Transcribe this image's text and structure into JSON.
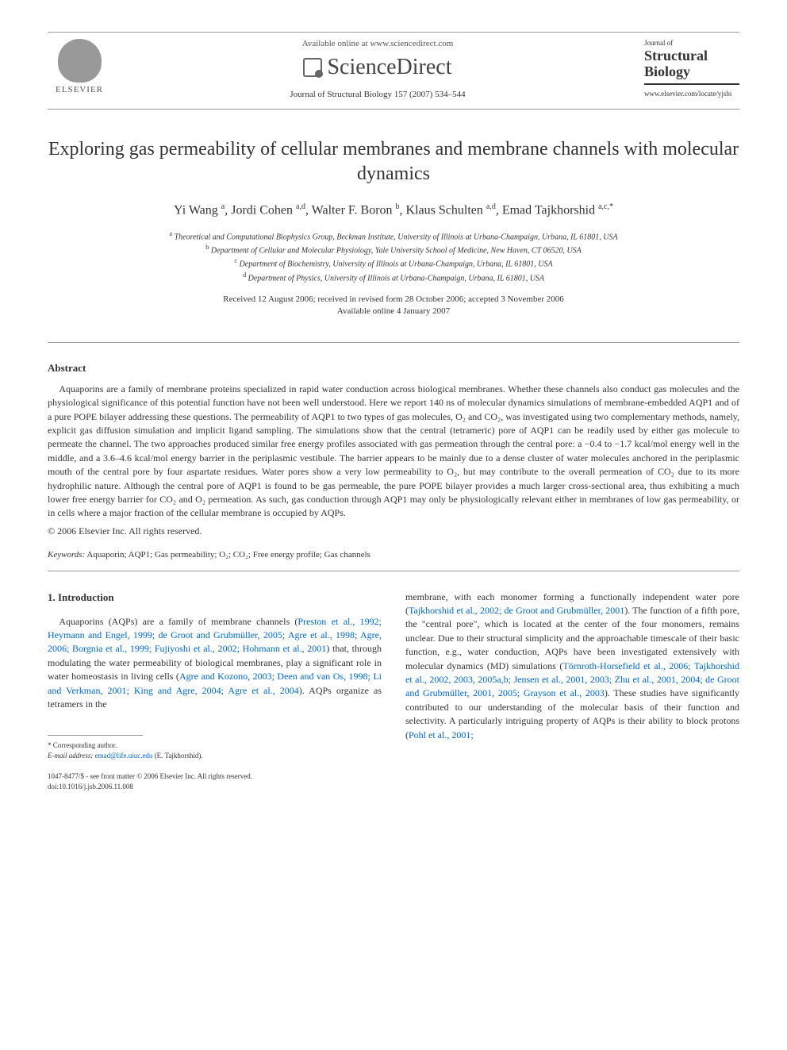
{
  "header": {
    "publisher_name": "ELSEVIER",
    "available_text": "Available online at www.sciencedirect.com",
    "platform_name": "ScienceDirect",
    "journal_ref": "Journal of Structural Biology 157 (2007) 534–544",
    "journal_small": "Journal of",
    "journal_large": "Structural Biology",
    "journal_url": "www.elsevier.com/locate/yjsbi"
  },
  "article": {
    "title": "Exploring gas permeability of cellular membranes and membrane channels with molecular dynamics",
    "authors_html": "Yi Wang <sup>a</sup>, Jordi Cohen <sup>a,d</sup>, Walter F. Boron <sup>b</sup>, Klaus Schulten <sup>a,d</sup>, Emad Tajkhorshid <sup>a,c,*</sup>",
    "affiliations": [
      {
        "sup": "a",
        "text": "Theoretical and Computational Biophysics Group, Beckman Institute, University of Illinois at Urbana-Champaign, Urbana, IL 61801, USA"
      },
      {
        "sup": "b",
        "text": "Department of Cellular and Molecular Physiology, Yale University School of Medicine, New Haven, CT 06520, USA"
      },
      {
        "sup": "c",
        "text": "Department of Biochemistry, University of Illinois at Urbana-Champaign, Urbana, IL 61801, USA"
      },
      {
        "sup": "d",
        "text": "Department of Physics, University of Illinois at Urbana-Champaign, Urbana, IL 61801, USA"
      }
    ],
    "dates_line1": "Received 12 August 2006; received in revised form 28 October 2006; accepted 3 November 2006",
    "dates_line2": "Available online 4 January 2007"
  },
  "abstract": {
    "heading": "Abstract",
    "body": "Aquaporins are a family of membrane proteins specialized in rapid water conduction across biological membranes. Whether these channels also conduct gas molecules and the physiological significance of this potential function have not been well understood. Here we report 140 ns of molecular dynamics simulations of membrane-embedded AQP1 and of a pure POPE bilayer addressing these questions. The permeability of AQP1 to two types of gas molecules, O₂ and CO₂, was investigated using two complementary methods, namely, explicit gas diffusion simulation and implicit ligand sampling. The simulations show that the central (tetrameric) pore of AQP1 can be readily used by either gas molecule to permeate the channel. The two approaches produced similar free energy profiles associated with gas permeation through the central pore: a −0.4 to −1.7 kcal/mol energy well in the middle, and a 3.6–4.6 kcal/mol energy barrier in the periplasmic vestibule. The barrier appears to be mainly due to a dense cluster of water molecules anchored in the periplasmic mouth of the central pore by four aspartate residues. Water pores show a very low permeability to O₂, but may contribute to the overall permeation of CO₂ due to its more hydrophilic nature. Although the central pore of AQP1 is found to be gas permeable, the pure POPE bilayer provides a much larger cross-sectional area, thus exhibiting a much lower free energy barrier for CO₂ and O₂ permeation. As such, gas conduction through AQP1 may only be physiologically relevant either in membranes of low gas permeability, or in cells where a major fraction of the cellular membrane is occupied by AQPs.",
    "copyright": "© 2006 Elsevier Inc. All rights reserved."
  },
  "keywords": {
    "label": "Keywords:",
    "text": " Aquaporin; AQP1; Gas permeability; O₂; CO₂; Free energy profile; Gas channels"
  },
  "intro": {
    "heading": "1. Introduction",
    "left_plain1": "Aquaporins (AQPs) are a family of membrane channels (",
    "left_link1": "Preston et al., 1992; Heymann and Engel, 1999; de Groot and Grubmüller, 2005; Agre et al., 1998; Agre, 2006; Borgnia et al., 1999; Fujiyoshi et al., 2002; Hohmann et al., 2001",
    "left_plain2": ") that, through modulating the water permeability of biological membranes, play a significant role in water homeostasis in living cells (",
    "left_link2": "Agre and Kozono, 2003; Deen and van Os, 1998; Li and Verkman, 2001; King and Agre, 2004; Agre et al., 2004",
    "left_plain3": "). AQPs organize as tetramers in the",
    "right_plain1": "membrane, with each monomer forming a functionally independent water pore (",
    "right_link1": "Tajkhorshid et al., 2002; de Groot and Grubmüller, 2001",
    "right_plain2": "). The function of a fifth pore, the \"central pore\", which is located at the center of the four monomers, remains unclear. Due to their structural simplicity and the approachable timescale of their basic function, e.g., water conduction, AQPs have been investigated extensively with molecular dynamics (MD) simulations (",
    "right_link2": "Törnroth-Horsefield et al., 2006; Tajkhorshid et al., 2002, 2003, 2005a,b; Jensen et al., 2001, 2003; Zhu et al., 2001, 2004; de Groot and Grubmüller, 2001, 2005; Grayson et al., 2003",
    "right_plain3": "). These studies have significantly contributed to our understanding of the molecular basis of their function and selectivity. A particularly intriguing property of AQPs is their ability to block protons (",
    "right_link3": "Pohl et al., 2001;"
  },
  "footnote": {
    "corresponding": "* Corresponding author.",
    "email_label": "E-mail address:",
    "email": "emad@life.uiuc.edu",
    "email_name": "(E. Tajkhorshid)."
  },
  "doi": {
    "line1": "1047-8477/$ - see front matter © 2006 Elsevier Inc. All rights reserved.",
    "line2": "doi:10.1016/j.jsb.2006.11.008"
  },
  "colors": {
    "link": "#0066cc",
    "text": "#333333",
    "border": "#999999"
  }
}
